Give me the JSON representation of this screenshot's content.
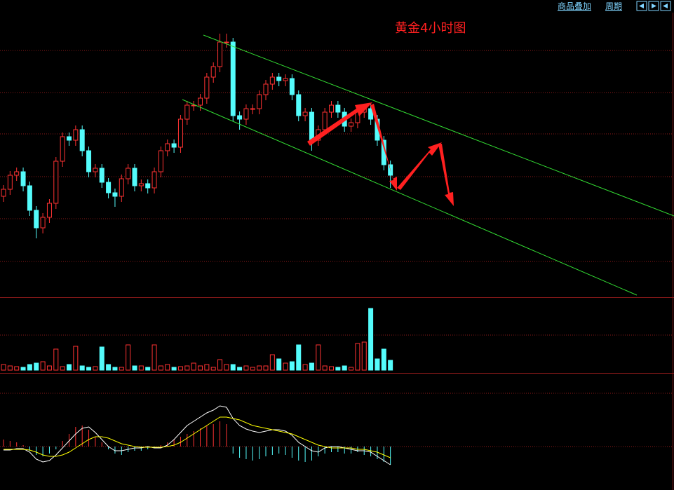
{
  "toolbar": {
    "items": [
      "商品叠加",
      "周期"
    ]
  },
  "chart_data": [
    {
      "type": "candlestick",
      "title": "黄金4小时图",
      "ylim": [
        0,
        425
      ],
      "up_color": "#ff3232",
      "down_color": "#54fcfc",
      "open": [
        145,
        155,
        175,
        180,
        160,
        125,
        100,
        115,
        135,
        195,
        230,
        225,
        240,
        210,
        180,
        185,
        165,
        150,
        145,
        170,
        185,
        160,
        163,
        157,
        180,
        210,
        220,
        215,
        255,
        275,
        275,
        285,
        315,
        330,
        365,
        365,
        260,
        255,
        270,
        270,
        290,
        305,
        315,
        310,
        313,
        290,
        260,
        265,
        225,
        240,
        265,
        275,
        265,
        245,
        250,
        265,
        270,
        255,
        225,
        190
      ],
      "high": [
        161,
        181,
        186,
        186,
        166,
        131,
        121,
        141,
        201,
        236,
        236,
        246,
        246,
        216,
        191,
        191,
        171,
        156,
        176,
        191,
        191,
        169,
        169,
        186,
        216,
        226,
        226,
        261,
        281,
        281,
        291,
        321,
        336,
        377,
        377,
        371,
        266,
        276,
        276,
        296,
        311,
        321,
        321,
        319,
        319,
        296,
        271,
        271,
        246,
        271,
        281,
        281,
        271,
        256,
        271,
        276,
        276,
        261,
        231,
        196
      ],
      "low": [
        137,
        147,
        167,
        152,
        117,
        85,
        92,
        107,
        127,
        187,
        217,
        217,
        202,
        172,
        172,
        157,
        142,
        130,
        137,
        162,
        152,
        152,
        149,
        149,
        172,
        202,
        207,
        207,
        247,
        267,
        267,
        277,
        307,
        322,
        357,
        252,
        240,
        247,
        262,
        262,
        282,
        297,
        302,
        302,
        282,
        252,
        252,
        210,
        217,
        232,
        257,
        257,
        237,
        237,
        242,
        257,
        247,
        217,
        182,
        157
      ],
      "close": [
        155,
        175,
        180,
        160,
        125,
        100,
        115,
        135,
        195,
        230,
        225,
        240,
        210,
        180,
        185,
        165,
        150,
        145,
        170,
        185,
        160,
        163,
        157,
        180,
        210,
        220,
        215,
        255,
        275,
        275,
        285,
        315,
        330,
        365,
        365,
        260,
        255,
        270,
        270,
        290,
        305,
        315,
        310,
        313,
        290,
        260,
        265,
        225,
        240,
        265,
        275,
        265,
        245,
        250,
        265,
        270,
        255,
        225,
        190,
        175
      ]
    },
    {
      "type": "volume",
      "ylim": [
        0,
        103
      ],
      "values": [
        8,
        6,
        5,
        4,
        8,
        10,
        12,
        6,
        30,
        5,
        8,
        34,
        6,
        4,
        5,
        33,
        8,
        4,
        4,
        36,
        6,
        6,
        4,
        36,
        6,
        8,
        4,
        5,
        6,
        10,
        6,
        8,
        4,
        15,
        8,
        8,
        4,
        6,
        4,
        6,
        6,
        22,
        16,
        10,
        12,
        36,
        8,
        10,
        36,
        6,
        5,
        4,
        6,
        4,
        38,
        40,
        88,
        16,
        30,
        14
      ]
    },
    {
      "type": "macd",
      "ylim": [
        -62,
        104
      ],
      "up_color": "#ff3232",
      "down_color": "#54fcfc",
      "histogram": [
        10,
        8,
        6,
        2,
        -6,
        -12,
        -14,
        -10,
        -4,
        8,
        18,
        28,
        30,
        24,
        14,
        6,
        -4,
        -10,
        -12,
        -8,
        -6,
        -6,
        -4,
        -2,
        2,
        6,
        10,
        14,
        18,
        22,
        26,
        30,
        32,
        36,
        32,
        -10,
        -16,
        -18,
        -20,
        -18,
        -14,
        -12,
        -10,
        -12,
        -16,
        -20,
        -22,
        -20,
        -14,
        -10,
        -8,
        -8,
        -10,
        -10,
        -8,
        -12,
        -14,
        -18,
        -22,
        -26
      ],
      "lines": [
        {
          "color": "#ffffff",
          "values": [
            -5,
            -5,
            -3,
            -3,
            -8,
            -18,
            -22,
            -20,
            -12,
            -2,
            8,
            18,
            26,
            28,
            20,
            10,
            0,
            -6,
            -6,
            -4,
            -2,
            -2,
            0,
            -2,
            -2,
            2,
            10,
            20,
            30,
            36,
            42,
            48,
            52,
            58,
            56,
            40,
            30,
            25,
            22,
            20,
            22,
            24,
            24,
            22,
            16,
            6,
            0,
            -6,
            -8,
            -2,
            0,
            0,
            -2,
            -4,
            -6,
            -6,
            -8,
            -14,
            -20,
            -26
          ]
        },
        {
          "color": "#ffff00",
          "values": [
            -4,
            -4,
            -4,
            -4,
            -5,
            -8,
            -12,
            -14,
            -14,
            -12,
            -8,
            -2,
            4,
            10,
            14,
            14,
            12,
            8,
            4,
            2,
            0,
            -1,
            -1,
            -1,
            -1,
            0,
            2,
            6,
            12,
            18,
            24,
            30,
            36,
            42,
            42,
            40,
            38,
            34,
            30,
            28,
            26,
            24,
            22,
            20,
            18,
            14,
            10,
            6,
            2,
            0,
            -2,
            -2,
            -2,
            -2,
            -4,
            -4,
            -6,
            -8,
            -12,
            -16
          ]
        }
      ]
    }
  ]
}
